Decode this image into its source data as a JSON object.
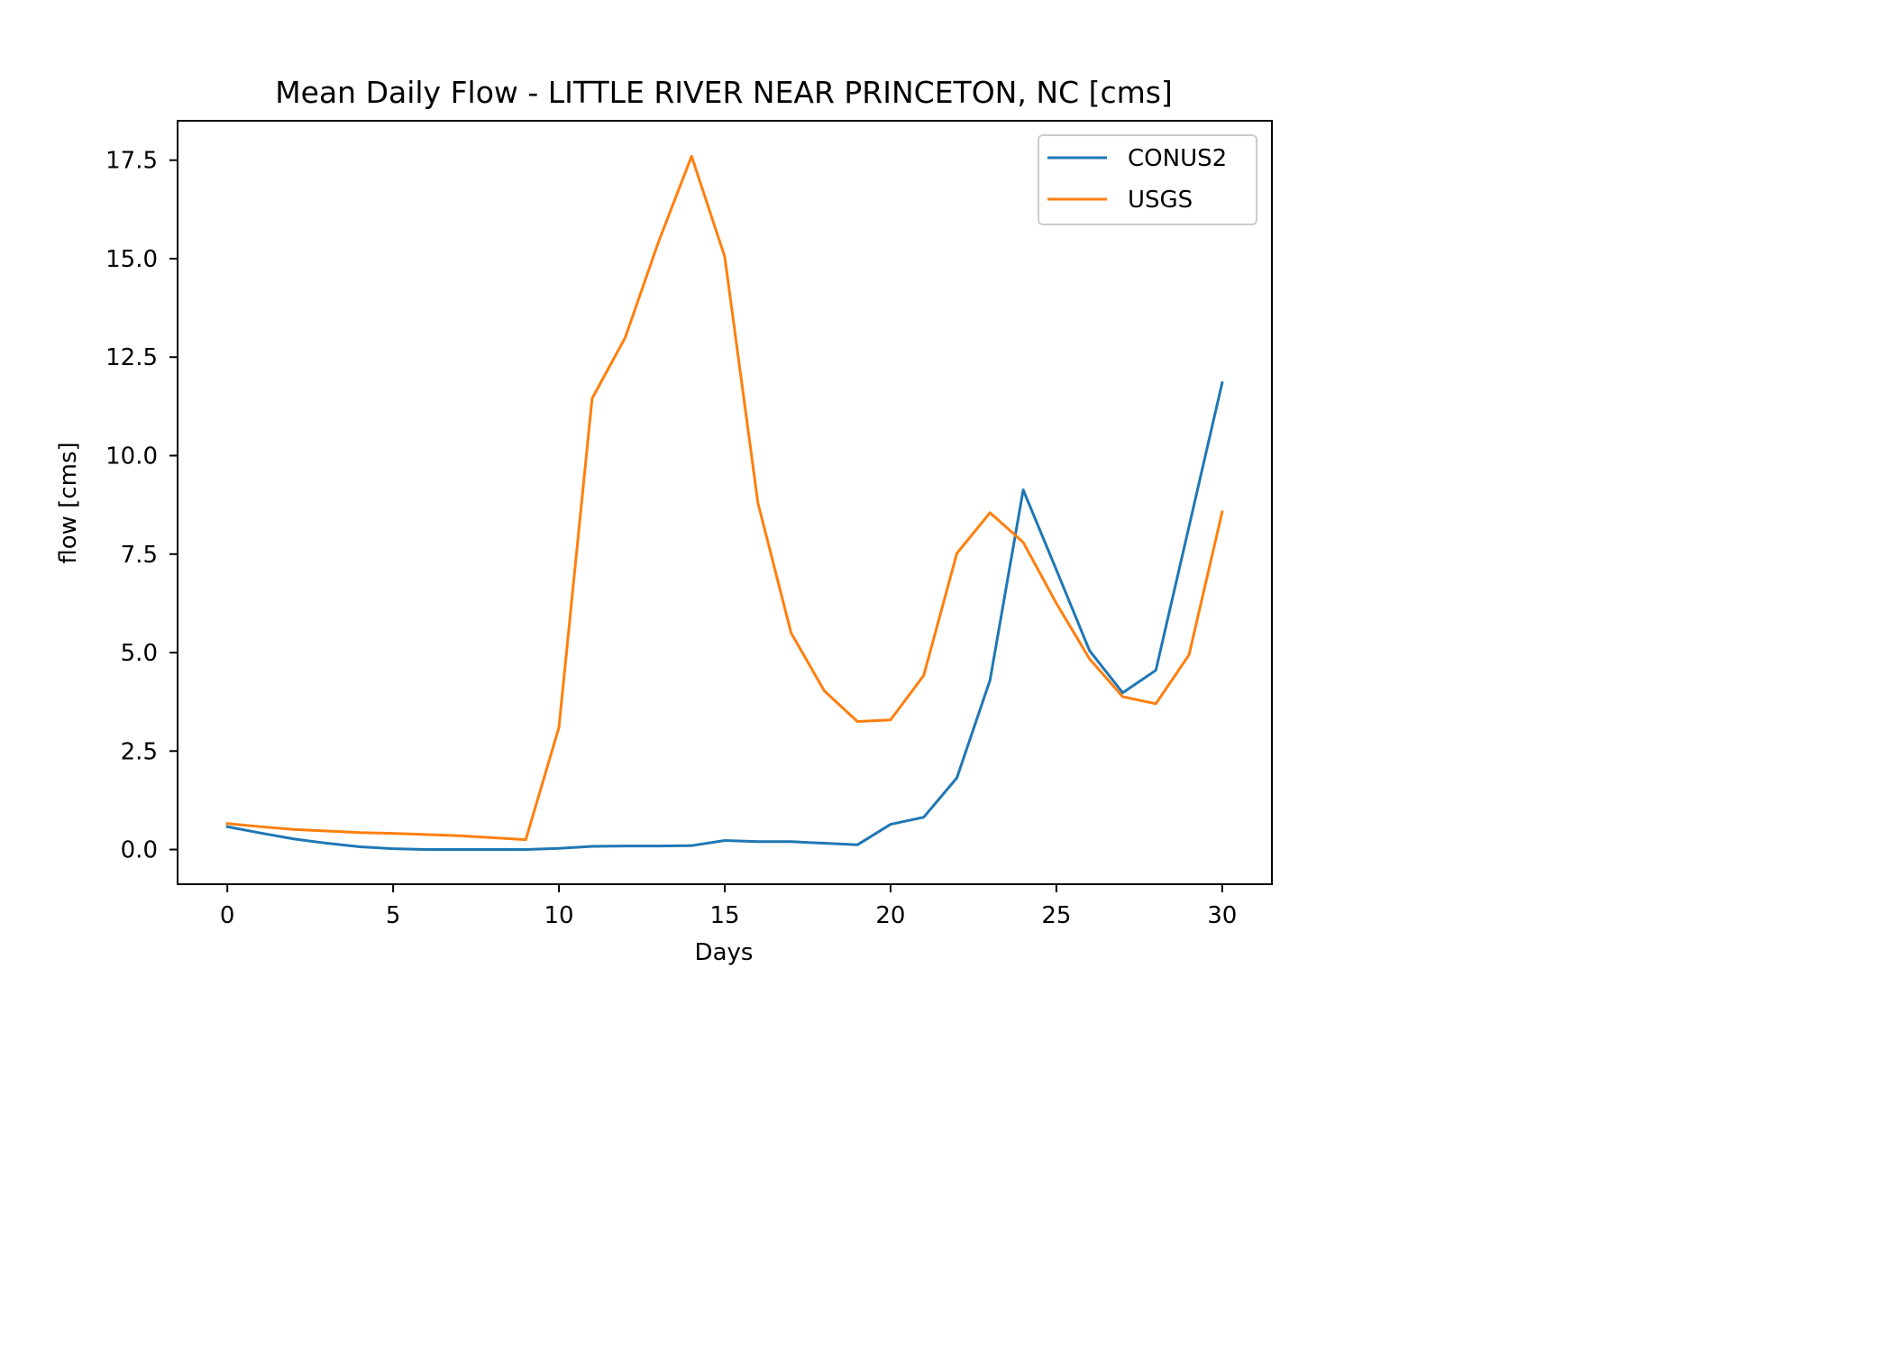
{
  "chart_data": {
    "type": "line",
    "title": "Mean Daily Flow - LITTLE RIVER NEAR PRINCETON, NC [cms]",
    "xlabel": "Days",
    "ylabel": "flow [cms]",
    "xlim": [
      -1.5,
      31.5
    ],
    "ylim": [
      -0.88,
      18.5
    ],
    "xticks": [
      0,
      5,
      10,
      15,
      20,
      25,
      30
    ],
    "yticks": [
      0.0,
      2.5,
      5.0,
      7.5,
      10.0,
      12.5,
      15.0,
      17.5
    ],
    "xtick_labels": [
      "0",
      "5",
      "10",
      "15",
      "20",
      "25",
      "30"
    ],
    "ytick_labels": [
      "0.0",
      "2.5",
      "5.0",
      "7.5",
      "10.0",
      "12.5",
      "15.0",
      "17.5"
    ],
    "grid": false,
    "legend_position": "top-right",
    "x": [
      0,
      1,
      2,
      3,
      4,
      5,
      6,
      7,
      8,
      9,
      10,
      11,
      12,
      13,
      14,
      15,
      16,
      17,
      18,
      19,
      20,
      21,
      22,
      23,
      24,
      25,
      26,
      27,
      28,
      29,
      30
    ],
    "series": [
      {
        "name": "CONUS2",
        "color": "#1f77b4",
        "values": [
          0.58,
          0.42,
          0.27,
          0.16,
          0.07,
          0.02,
          0.0,
          0.0,
          0.0,
          0.0,
          0.03,
          0.08,
          0.09,
          0.09,
          0.1,
          0.23,
          0.2,
          0.2,
          0.16,
          0.12,
          0.64,
          0.82,
          1.82,
          4.3,
          9.13,
          7.1,
          5.05,
          3.98,
          4.55,
          8.2,
          11.85
        ]
      },
      {
        "name": "USGS",
        "color": "#ff7f0e",
        "values": [
          0.66,
          0.58,
          0.51,
          0.47,
          0.43,
          0.41,
          0.38,
          0.35,
          0.3,
          0.25,
          3.1,
          11.45,
          13.0,
          15.42,
          17.6,
          15.05,
          8.8,
          5.5,
          4.03,
          3.25,
          3.29,
          4.42,
          7.52,
          8.55,
          7.8,
          6.25,
          4.84,
          3.88,
          3.7,
          4.94,
          8.57
        ]
      }
    ]
  }
}
